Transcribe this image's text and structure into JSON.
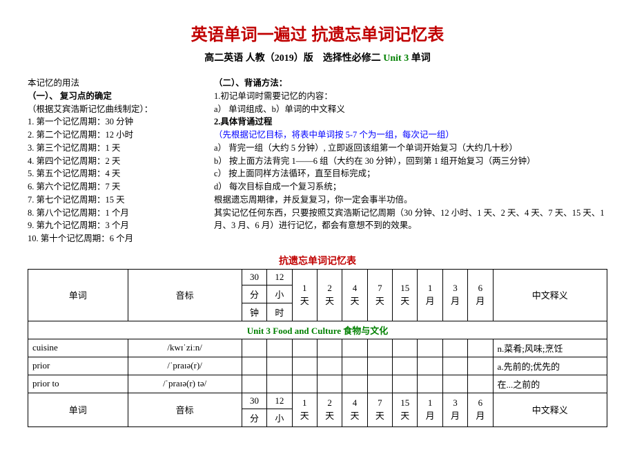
{
  "title": "英语单词一遍过 抗遗忘单词记忆表",
  "subtitle_prefix": "高二英语 人教（2019）版　选择性必修二 ",
  "subtitle_unit": "Unit 3",
  "subtitle_suffix": " 单词",
  "left": {
    "h0": "本记忆的用法",
    "h1": "（一）、 复习点的确定",
    "note": "（根据艾宾浩斯记忆曲线制定）：",
    "items": [
      "1. 第一个记忆周期：30 分钟",
      "2. 第二个记忆周期：12 小时",
      "3. 第三个记忆周期：1 天",
      "4. 第四个记忆周期：2 天",
      "5. 第五个记忆周期：4 天",
      "6. 第六个记忆周期：7 天",
      "7. 第七个记忆周期：15 天",
      "8. 第八个记忆周期：1 个月",
      "9. 第九个记忆周期：3 个月",
      "10. 第十个记忆周期：6 个月"
    ]
  },
  "right": {
    "h1": "（二）、背诵方法：",
    "l1": "1.初记单词时需要记忆的内容：",
    "l2": "a） 单词组成、b）单词的中文释义",
    "l3": "2.具体背诵过程",
    "blue": "（先根据记忆目标，将表中单词按 5-7 个为一组，每次记一组）",
    "a": "a） 背完一组（大约 5 分钟）,  立即返回该组第一个单词开始复习（大约几十秒）",
    "b": "b） 按上面方法背完 1——6 组（大约在 30 分钟），回到第 1 组开始复习（两三分钟）",
    "c": "c） 按上面同样方法循环，直至目标完成；",
    "d": "d） 每次目标自成一个复习系统；",
    "e": "根据遗忘周期律，并反复复习，你一定会事半功倍。",
    "f": "其实记忆任何东西，只要按照艾宾浩斯记忆周期（30 分钟、12 小时、1 天、2 天、4 天、7 天、15 天、1 月、3 月、6 月）进行记忆，都会有意想不到的效果。"
  },
  "table_title": "抗遗忘单词记忆表",
  "headers": {
    "word": "单词",
    "phon": "音标",
    "c30a": "30",
    "c30b": "分",
    "c30c": "钟",
    "c12a": "12",
    "c12b": "小",
    "c12c": "时",
    "d1a": "1",
    "d1b": "天",
    "d2a": "2",
    "d2b": "天",
    "d4a": "4",
    "d4b": "天",
    "d7a": "7",
    "d7b": "天",
    "d15a": "15",
    "d15b": "天",
    "m1a": "1",
    "m1b": "月",
    "m3a": "3",
    "m3b": "月",
    "m6a": "6",
    "m6b": "月",
    "mean": "中文释义",
    "c30_2a": "30",
    "c30_2b": "分",
    "c12_2a": "12",
    "c12_2b": "小"
  },
  "section": "Unit 3 Food and Culture 食物与文化",
  "rows": [
    {
      "w": "cuisine",
      "p": "/kwɪˈziːn/",
      "m": "n.菜肴;风味;烹饪"
    },
    {
      "w": "prior",
      "p": "/ˈpraɪə(r)/",
      "m": "a.先前的;优先的"
    },
    {
      "w": "prior to",
      "p": "/ˈpraɪə(r) tə/",
      "m": "在...之前的"
    }
  ]
}
